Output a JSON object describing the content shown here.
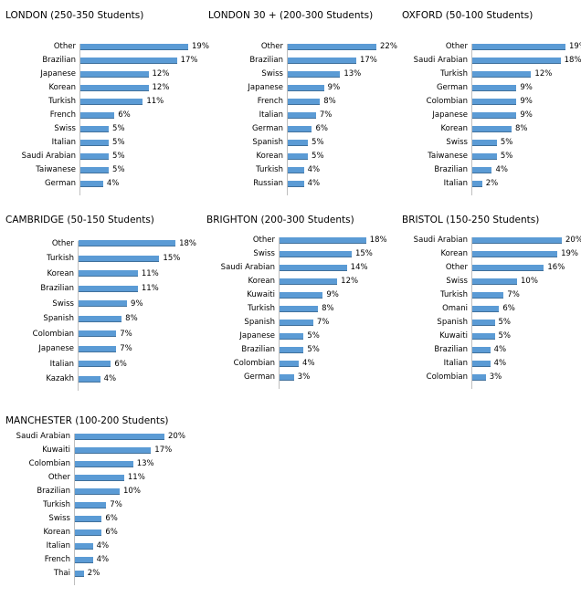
{
  "chart_data": [
    {
      "type": "bar",
      "orientation": "horizontal",
      "title": "LONDON (250-350 Students)",
      "categories": [
        "Other",
        "Brazilian",
        "Japanese",
        "Korean",
        "Turkish",
        "French",
        "Swiss",
        "Italian",
        "Saudi Arabian",
        "Taiwanese",
        "German"
      ],
      "values": [
        19,
        17,
        12,
        12,
        11,
        6,
        5,
        5,
        5,
        5,
        4
      ],
      "value_labels": [
        "19%",
        "17%",
        "12%",
        "12%",
        "11%",
        "6%",
        "5%",
        "5%",
        "5%",
        "5%",
        "4%"
      ],
      "xlim": [
        0,
        19
      ],
      "bar_color": "#5b9bd5"
    },
    {
      "type": "bar",
      "orientation": "horizontal",
      "title": "LONDON 30 + (200-300 Students)",
      "categories": [
        "Other",
        "Brazilian",
        "Swiss",
        "Japanese",
        "French",
        "Italian",
        "German",
        "Spanish",
        "Korean",
        "Turkish",
        "Russian"
      ],
      "values": [
        22,
        17,
        13,
        9,
        8,
        7,
        6,
        5,
        5,
        4,
        4
      ],
      "value_labels": [
        "22%",
        "17%",
        "13%",
        "9%",
        "8%",
        "7%",
        "6%",
        "5%",
        "5%",
        "4%",
        "4%"
      ],
      "xlim": [
        0,
        22
      ],
      "bar_color": "#5b9bd5"
    },
    {
      "type": "bar",
      "orientation": "horizontal",
      "title": "OXFORD (50-100 Students)",
      "categories": [
        "Other",
        "Saudi Arabian",
        "Turkish",
        "German",
        "Colombian",
        "Japanese",
        "Korean",
        "Swiss",
        "Taiwanese",
        "Brazilian",
        "Italian"
      ],
      "values": [
        19,
        18,
        12,
        9,
        9,
        9,
        8,
        5,
        5,
        4,
        2
      ],
      "value_labels": [
        "19%",
        "18%",
        "12%",
        "9%",
        "9%",
        "9%",
        "8%",
        "5%",
        "5%",
        "4%",
        "2%"
      ],
      "xlim": [
        0,
        19
      ],
      "bar_color": "#5b9bd5"
    },
    {
      "type": "bar",
      "orientation": "horizontal",
      "title": "CAMBRIDGE (50-150 Students)",
      "categories": [
        "Other",
        "Turkish",
        "Korean",
        "Brazilian",
        "Swiss",
        "Spanish",
        "Colombian",
        "Japanese",
        "Italian",
        "Kazakh"
      ],
      "values": [
        18,
        15,
        11,
        11,
        9,
        8,
        7,
        7,
        6,
        4
      ],
      "value_labels": [
        "18%",
        "15%",
        "11%",
        "11%",
        "9%",
        "8%",
        "7%",
        "7%",
        "6%",
        "4%"
      ],
      "xlim": [
        0,
        19
      ],
      "bar_color": "#5b9bd5"
    },
    {
      "type": "bar",
      "orientation": "horizontal",
      "title": "BRIGHTON (200-300 Students)",
      "categories": [
        "Other",
        "Swiss",
        "Saudi Arabian",
        "Korean",
        "Kuwaiti",
        "Turkish",
        "Spanish",
        "Japanese",
        "Brazilian",
        "Colombian",
        "German"
      ],
      "values": [
        18,
        15,
        14,
        12,
        9,
        8,
        7,
        5,
        5,
        4,
        3
      ],
      "value_labels": [
        "18%",
        "15%",
        "14%",
        "12%",
        "9%",
        "8%",
        "7%",
        "5%",
        "5%",
        "4%",
        "3%"
      ],
      "xlim": [
        0,
        19
      ],
      "bar_color": "#5b9bd5"
    },
    {
      "type": "bar",
      "orientation": "horizontal",
      "title": "BRISTOL  (150-250 Students)",
      "categories": [
        "Saudi Arabian",
        "Korean",
        "Other",
        "Swiss",
        "Turkish",
        "Omani",
        "Spanish",
        "Kuwaiti",
        "Brazilian",
        "Italian",
        "Colombian"
      ],
      "values": [
        20,
        19,
        16,
        10,
        7,
        6,
        5,
        5,
        4,
        4,
        3
      ],
      "value_labels": [
        "20%",
        "19%",
        "16%",
        "10%",
        "7%",
        "6%",
        "5%",
        "5%",
        "4%",
        "4%",
        "3%"
      ],
      "xlim": [
        0,
        20
      ],
      "bar_color": "#5b9bd5"
    },
    {
      "type": "bar",
      "orientation": "horizontal",
      "title": "MANCHESTER (100-200 Students)",
      "categories": [
        "Saudi Arabian",
        "Kuwaiti",
        "Colombian",
        "Other",
        "Brazilian",
        "Turkish",
        "Swiss",
        "Korean",
        "Italian",
        "French",
        "Thai"
      ],
      "values": [
        20,
        17,
        13,
        11,
        10,
        7,
        6,
        6,
        4,
        4,
        2
      ],
      "value_labels": [
        "20%",
        "17%",
        "13%",
        "11%",
        "10%",
        "7%",
        "6%",
        "6%",
        "4%",
        "4%",
        "2%"
      ],
      "xlim": [
        0,
        20
      ],
      "bar_color": "#5b9bd5"
    }
  ]
}
